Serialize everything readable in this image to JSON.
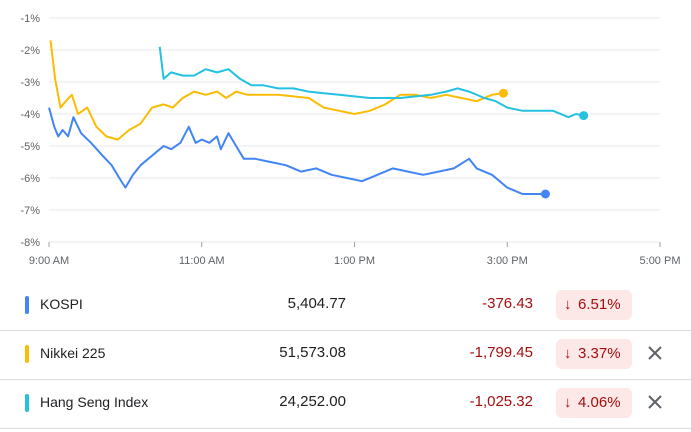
{
  "chart_data": {
    "type": "line",
    "y_ticks": [
      "-1%",
      "-2%",
      "-3%",
      "-4%",
      "-5%",
      "-6%",
      "-7%",
      "-8%"
    ],
    "ylim": [
      -8,
      -1
    ],
    "x_ticks": [
      "9:00 AM",
      "11:00 AM",
      "1:00 PM",
      "3:00 PM",
      "5:00 PM"
    ],
    "x_tick_hours": [
      9,
      11,
      13,
      15,
      17
    ],
    "xlim": [
      9,
      17
    ],
    "grid": true,
    "series": [
      {
        "name": "KOSPI",
        "color": "#4285f4",
        "points": [
          [
            9.0,
            -3.8
          ],
          [
            9.07,
            -4.4
          ],
          [
            9.12,
            -4.7
          ],
          [
            9.18,
            -4.5
          ],
          [
            9.25,
            -4.7
          ],
          [
            9.32,
            -4.1
          ],
          [
            9.42,
            -4.6
          ],
          [
            9.55,
            -4.9
          ],
          [
            9.7,
            -5.3
          ],
          [
            9.82,
            -5.6
          ],
          [
            9.92,
            -6.0
          ],
          [
            10.0,
            -6.3
          ],
          [
            10.1,
            -5.9
          ],
          [
            10.2,
            -5.6
          ],
          [
            10.35,
            -5.3
          ],
          [
            10.5,
            -5.0
          ],
          [
            10.6,
            -5.1
          ],
          [
            10.72,
            -4.9
          ],
          [
            10.83,
            -4.4
          ],
          [
            10.92,
            -4.9
          ],
          [
            11.0,
            -4.8
          ],
          [
            11.1,
            -4.9
          ],
          [
            11.2,
            -4.7
          ],
          [
            11.25,
            -5.1
          ],
          [
            11.35,
            -4.6
          ],
          [
            11.45,
            -5.0
          ],
          [
            11.55,
            -5.4
          ],
          [
            11.7,
            -5.4
          ],
          [
            11.9,
            -5.5
          ],
          [
            12.1,
            -5.6
          ],
          [
            12.3,
            -5.8
          ],
          [
            12.5,
            -5.7
          ],
          [
            12.7,
            -5.9
          ],
          [
            12.9,
            -6.0
          ],
          [
            13.1,
            -6.1
          ],
          [
            13.3,
            -5.9
          ],
          [
            13.5,
            -5.7
          ],
          [
            13.7,
            -5.8
          ],
          [
            13.9,
            -5.9
          ],
          [
            14.1,
            -5.8
          ],
          [
            14.3,
            -5.7
          ],
          [
            14.5,
            -5.4
          ],
          [
            14.6,
            -5.7
          ],
          [
            14.8,
            -5.9
          ],
          [
            15.0,
            -6.3
          ],
          [
            15.2,
            -6.5
          ],
          [
            15.4,
            -6.5
          ],
          [
            15.5,
            -6.5
          ]
        ]
      },
      {
        "name": "Nikkei 225",
        "color": "#fbbc04",
        "points": [
          [
            9.02,
            -1.7
          ],
          [
            9.08,
            -2.9
          ],
          [
            9.15,
            -3.8
          ],
          [
            9.22,
            -3.6
          ],
          [
            9.3,
            -3.4
          ],
          [
            9.38,
            -4.0
          ],
          [
            9.5,
            -3.8
          ],
          [
            9.62,
            -4.4
          ],
          [
            9.75,
            -4.7
          ],
          [
            9.9,
            -4.8
          ],
          [
            10.05,
            -4.5
          ],
          [
            10.2,
            -4.3
          ],
          [
            10.35,
            -3.8
          ],
          [
            10.5,
            -3.7
          ],
          [
            10.62,
            -3.8
          ],
          [
            10.75,
            -3.5
          ],
          [
            10.9,
            -3.3
          ],
          [
            11.05,
            -3.4
          ],
          [
            11.2,
            -3.3
          ],
          [
            11.32,
            -3.5
          ],
          [
            11.45,
            -3.3
          ],
          [
            11.6,
            -3.4
          ],
          [
            11.8,
            -3.4
          ],
          [
            12.0,
            -3.4
          ],
          [
            12.2,
            -3.45
          ],
          [
            12.4,
            -3.5
          ],
          [
            12.6,
            -3.8
          ],
          [
            12.8,
            -3.9
          ],
          [
            13.0,
            -4.0
          ],
          [
            13.2,
            -3.9
          ],
          [
            13.4,
            -3.7
          ],
          [
            13.6,
            -3.4
          ],
          [
            13.8,
            -3.4
          ],
          [
            14.0,
            -3.5
          ],
          [
            14.2,
            -3.4
          ],
          [
            14.4,
            -3.5
          ],
          [
            14.6,
            -3.6
          ],
          [
            14.8,
            -3.4
          ],
          [
            14.95,
            -3.35
          ]
        ]
      },
      {
        "name": "Hang Seng Index",
        "color": "#24c1e0",
        "points": [
          [
            10.45,
            -1.9
          ],
          [
            10.5,
            -2.9
          ],
          [
            10.6,
            -2.7
          ],
          [
            10.75,
            -2.8
          ],
          [
            10.9,
            -2.8
          ],
          [
            11.05,
            -2.6
          ],
          [
            11.2,
            -2.7
          ],
          [
            11.35,
            -2.6
          ],
          [
            11.5,
            -2.9
          ],
          [
            11.65,
            -3.1
          ],
          [
            11.8,
            -3.1
          ],
          [
            12.0,
            -3.2
          ],
          [
            12.2,
            -3.2
          ],
          [
            12.4,
            -3.3
          ],
          [
            12.6,
            -3.35
          ],
          [
            12.8,
            -3.4
          ],
          [
            13.0,
            -3.45
          ],
          [
            13.2,
            -3.5
          ],
          [
            13.4,
            -3.5
          ],
          [
            13.6,
            -3.5
          ],
          [
            13.8,
            -3.45
          ],
          [
            14.0,
            -3.4
          ],
          [
            14.2,
            -3.3
          ],
          [
            14.35,
            -3.2
          ],
          [
            14.5,
            -3.3
          ],
          [
            14.7,
            -3.5
          ],
          [
            14.85,
            -3.6
          ],
          [
            15.0,
            -3.8
          ],
          [
            15.2,
            -3.9
          ],
          [
            15.4,
            -3.9
          ],
          [
            15.6,
            -3.9
          ],
          [
            15.8,
            -4.1
          ],
          [
            15.9,
            -4.0
          ],
          [
            16.0,
            -4.05
          ]
        ]
      }
    ]
  },
  "rows": [
    {
      "name": "KOSPI",
      "price": "5,404.77",
      "change": "-376.43",
      "percent": "6.51%",
      "color": "#4285f4",
      "closable": false
    },
    {
      "name": "Nikkei 225",
      "price": "51,573.08",
      "change": "-1,799.45",
      "percent": "3.37%",
      "color": "#fbbc04",
      "closable": true
    },
    {
      "name": "Hang Seng Index",
      "price": "24,252.00",
      "change": "-1,025.32",
      "percent": "4.06%",
      "color": "#24c1e0",
      "closable": true
    }
  ],
  "icons": {
    "down": "down-arrow-icon",
    "close": "close-icon"
  }
}
